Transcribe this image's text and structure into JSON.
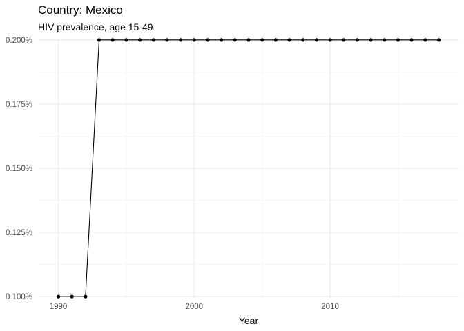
{
  "chart_data": {
    "type": "line",
    "title": "Country: Mexico",
    "subtitle": "HIV prevalence, age 15-49",
    "xlabel": "Year",
    "ylabel": "",
    "x": [
      1990,
      1991,
      1992,
      1993,
      1994,
      1995,
      1996,
      1997,
      1998,
      1999,
      2000,
      2001,
      2002,
      2003,
      2004,
      2005,
      2006,
      2007,
      2008,
      2009,
      2010,
      2011,
      2012,
      2013,
      2014,
      2015,
      2016,
      2017,
      2018
    ],
    "series": [
      {
        "values": [
          0.1,
          0.1,
          0.1,
          0.2,
          0.2,
          0.2,
          0.2,
          0.2,
          0.2,
          0.2,
          0.2,
          0.2,
          0.2,
          0.2,
          0.2,
          0.2,
          0.2,
          0.2,
          0.2,
          0.2,
          0.2,
          0.2,
          0.2,
          0.2,
          0.2,
          0.2,
          0.2,
          0.2,
          0.2
        ]
      }
    ],
    "xlim": [
      1988.5,
      2019.5
    ],
    "ylim": [
      0.0995,
      0.2005
    ],
    "xticks": [
      1990,
      2000,
      2010
    ],
    "xtick_labels": [
      "1990",
      "2000",
      "2010"
    ],
    "xminor": [
      1995,
      2005,
      2015
    ],
    "yticks": [
      0.1,
      0.125,
      0.15,
      0.175,
      0.2
    ],
    "ytick_labels": [
      "0.100%",
      "0.125%",
      "0.150%",
      "0.175%",
      "0.200%"
    ],
    "yminor": [
      0.1125,
      0.1375,
      0.1625,
      0.1875
    ],
    "grid": true,
    "legend": "none",
    "colors": {
      "line": "#000000",
      "points": "#000000",
      "grid_major": "#ebebeb",
      "grid_minor": "#f5f5f5",
      "tick_text": "#4d4d4d"
    }
  }
}
